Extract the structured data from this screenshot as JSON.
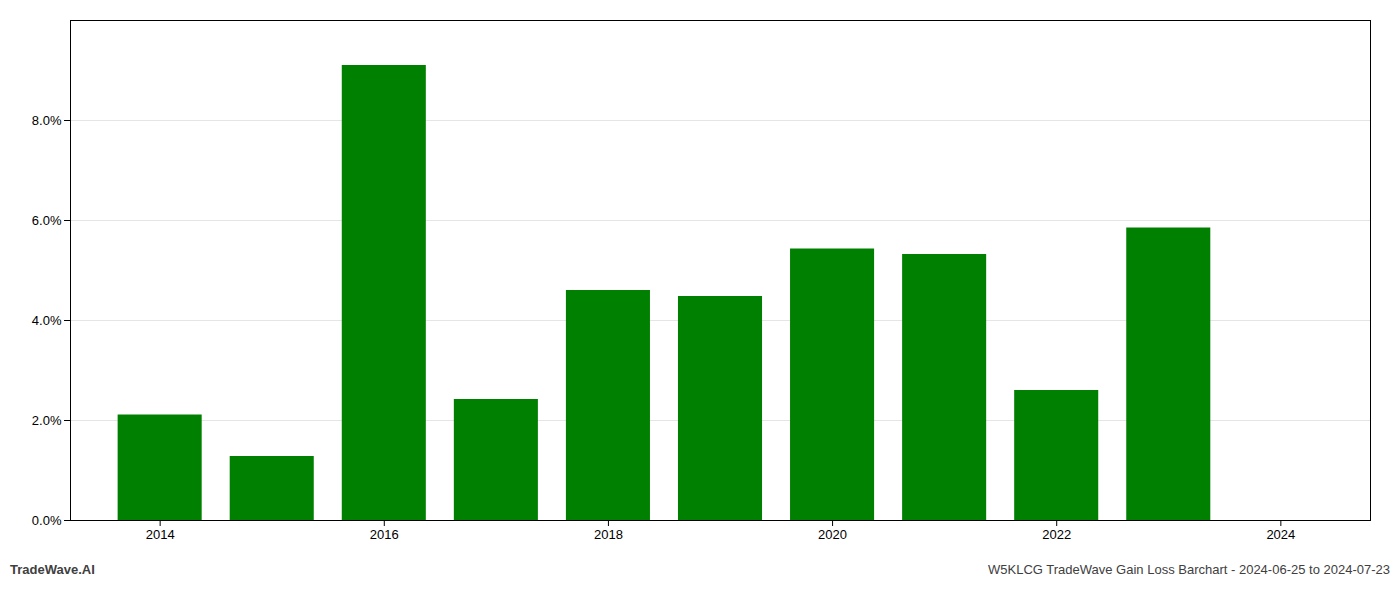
{
  "chart_data": {
    "type": "bar",
    "x": [
      2014,
      2015,
      2016,
      2017,
      2018,
      2019,
      2020,
      2021,
      2022,
      2023
    ],
    "values": [
      0.0211,
      0.0128,
      0.091,
      0.0242,
      0.046,
      0.0448,
      0.0543,
      0.0532,
      0.026,
      0.0585
    ],
    "color": "#008000",
    "xlim": [
      2013.2,
      2024.8
    ],
    "xticks": [
      2014,
      2016,
      2018,
      2020,
      2022,
      2024
    ],
    "ylim": [
      0,
      0.1
    ],
    "yticks": [
      {
        "value": 0.0,
        "label": "0.0%"
      },
      {
        "value": 0.02,
        "label": "2.0%"
      },
      {
        "value": 0.04,
        "label": "4.0%"
      },
      {
        "value": 0.06,
        "label": "6.0%"
      },
      {
        "value": 0.08,
        "label": "8.0%"
      }
    ],
    "grid": true,
    "annotations": [
      "TradeWave.AI",
      "W5KLCG TradeWave Gain Loss Barchart - 2024-06-25 to 2024-07-23"
    ]
  }
}
